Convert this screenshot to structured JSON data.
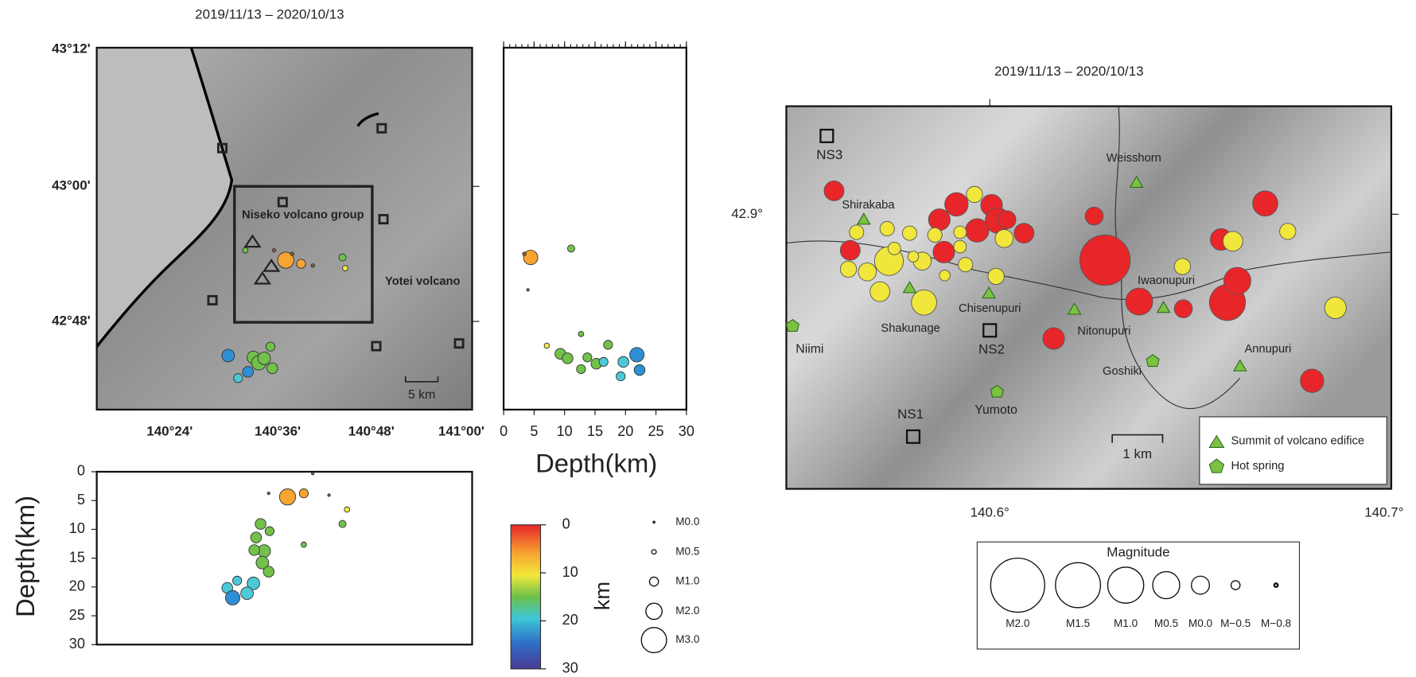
{
  "left": {
    "title": "2019/11/13 – 2020/10/13",
    "lat_labels": [
      "43°12'",
      "43°00'",
      "42°48'"
    ],
    "lon_labels": [
      "140°24'",
      "140°36'",
      "140°48'",
      "141°00'"
    ],
    "map_labels": {
      "niseko": "Niseko volcano group",
      "yotei": "Yotei volcano",
      "scale": "5 km"
    },
    "depth_section": {
      "xlim": [
        0,
        30
      ],
      "xticks": [
        0,
        5,
        10,
        15,
        20,
        25,
        30
      ],
      "xlabel": "Depth(km)"
    },
    "cross_section": {
      "ylim": [
        0,
        30
      ],
      "yticks": [
        0,
        5,
        10,
        15,
        20,
        25,
        30
      ],
      "ylabel": "Depth(km)"
    },
    "colorbar": {
      "lim": [
        0,
        30
      ],
      "ticks": [
        0,
        10,
        20,
        30
      ],
      "unit": "km"
    },
    "magnitude_legend": [
      "M0.0",
      "M0.5",
      "M1.0",
      "M2.0",
      "M3.0"
    ]
  },
  "right": {
    "title": "2019/11/13 – 2020/10/13",
    "lat_labels": [
      "42.9°"
    ],
    "lon_labels": [
      "140.6°",
      "140.7°"
    ],
    "stations": [
      "NS3",
      "NS2",
      "NS1"
    ],
    "places": [
      "Weisshorn",
      "Shirakaba",
      "Chisenupuri",
      "Shakunage",
      "Nitonupuri",
      "Iwaonupuri",
      "Annupuri",
      "Niimi",
      "Yumoto",
      "Goshiki"
    ],
    "scale": "1 km",
    "legend": [
      "Summit of volcano edifice",
      "Hot spring"
    ],
    "magnitude_legend": {
      "title": "Magnitude",
      "labels": [
        "M2.0",
        "M1.5",
        "M1.0",
        "M0.5",
        "M0.0",
        "M−0.5",
        "M−0.8"
      ]
    }
  }
}
